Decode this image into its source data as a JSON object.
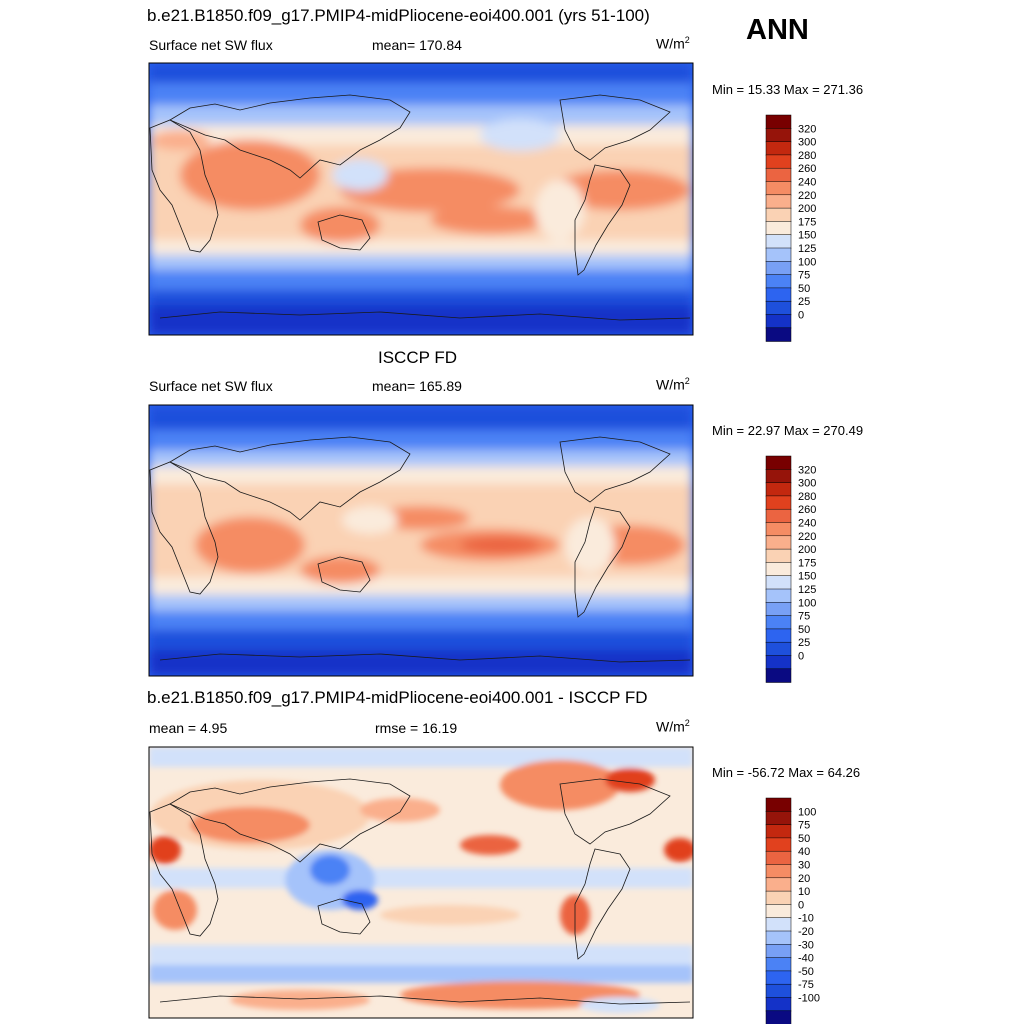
{
  "season": "ANN",
  "palette_abs": [
    "#0a0a82",
    "#1432c8",
    "#1e50dc",
    "#2d64f0",
    "#4b82f5",
    "#78a0f5",
    "#a5c3fa",
    "#d2e1fa",
    "#faebdc",
    "#fad2b4",
    "#faaf8c",
    "#f58c64",
    "#eb6441",
    "#e1411e",
    "#c3280f",
    "#96140a",
    "#780000"
  ],
  "palette_diff": [
    "#0a0a82",
    "#1432c8",
    "#1e50dc",
    "#2d64f0",
    "#4b82f5",
    "#78a0f5",
    "#a5c3fa",
    "#d2e1fa",
    "#faebdc",
    "#fad2b4",
    "#faaf8c",
    "#f58c64",
    "#eb6441",
    "#e1411e",
    "#c3280f",
    "#96140a",
    "#780000"
  ],
  "panels": [
    {
      "title": "b.e21.B1850.f09_g17.PMIP4-midPliocene-eoi400.001 (yrs 51-100)",
      "left": "Surface net SW flux",
      "mid": "mean= 170.84",
      "unit_base": "W/m",
      "unit_exp": "2",
      "minmax": "Min =  15.33 Max = 271.36",
      "levels": [
        "320",
        "300",
        "280",
        "260",
        "240",
        "220",
        "200",
        "175",
        "150",
        "125",
        "100",
        "75",
        "50",
        "25",
        "0"
      ]
    },
    {
      "title": "ISCCP FD",
      "left": "Surface net SW flux",
      "mid": "mean= 165.89",
      "unit_base": "W/m",
      "unit_exp": "2",
      "minmax": "Min =  22.97 Max = 270.49",
      "levels": [
        "320",
        "300",
        "280",
        "260",
        "240",
        "220",
        "200",
        "175",
        "150",
        "125",
        "100",
        "75",
        "50",
        "25",
        "0"
      ]
    },
    {
      "title": "b.e21.B1850.f09_g17.PMIP4-midPliocene-eoi400.001 - ISCCP FD",
      "left": "mean =   4.95",
      "mid": "rmse =  16.19",
      "unit_base": "W/m",
      "unit_exp": "2",
      "minmax": "Min = -56.72 Max =  64.26",
      "levels": [
        "100",
        "75",
        "50",
        "40",
        "30",
        "20",
        "10",
        "0",
        "-10",
        "-20",
        "-30",
        "-40",
        "-50",
        "-75",
        "-100"
      ]
    }
  ],
  "chart_data": [
    {
      "type": "heatmap",
      "title": "b.e21.B1850.f09_g17.PMIP4-midPliocene-eoi400.001 (yrs 51-100)",
      "variable": "Surface net SW flux",
      "units": "W/m2",
      "mean": 170.84,
      "min": 15.33,
      "max": 271.36,
      "contour_levels": [
        0,
        25,
        50,
        75,
        100,
        125,
        150,
        175,
        200,
        220,
        240,
        260,
        280,
        300,
        320
      ]
    },
    {
      "type": "heatmap",
      "title": "ISCCP FD",
      "variable": "Surface net SW flux",
      "units": "W/m2",
      "mean": 165.89,
      "min": 22.97,
      "max": 270.49,
      "contour_levels": [
        0,
        25,
        50,
        75,
        100,
        125,
        150,
        175,
        200,
        220,
        240,
        260,
        280,
        300,
        320
      ]
    },
    {
      "type": "heatmap",
      "title": "b.e21.B1850.f09_g17.PMIP4-midPliocene-eoi400.001 - ISCCP FD",
      "units": "W/m2",
      "mean": 4.95,
      "rmse": 16.19,
      "min": -56.72,
      "max": 64.26,
      "contour_levels": [
        -100,
        -75,
        -50,
        -40,
        -30,
        -20,
        -10,
        0,
        10,
        20,
        30,
        40,
        50,
        75,
        100
      ]
    }
  ]
}
